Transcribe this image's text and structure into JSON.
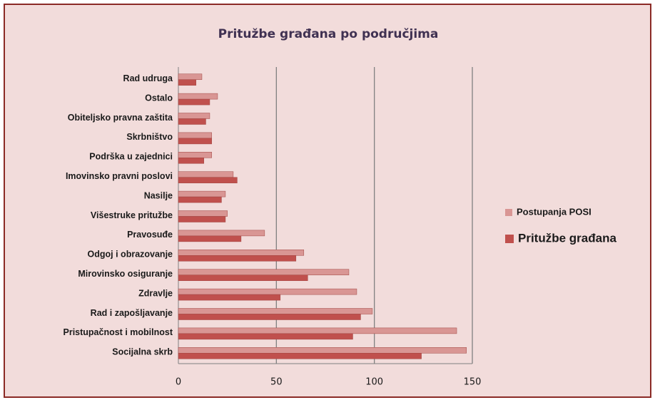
{
  "chart_data": {
    "type": "bar",
    "orientation": "horizontal",
    "title": "Pritužbe građana po područjima",
    "categories": [
      "Rad udruga",
      "Ostalo",
      "Obiteljsko pravna zaštita",
      "Skrbništvo",
      "Podrška u zajednici",
      "Imovinsko pravni poslovi",
      "Nasilje",
      "Višestruke pritužbe",
      "Pravosuđe",
      "Odgoj i obrazovanje",
      "Mirovinsko osiguranje",
      "Zdravlje",
      "Rad i zapošljavanje",
      "Pristupačnost i mobilnost",
      "Socijalna skrb"
    ],
    "series": [
      {
        "name": "Postupanja POSI",
        "color": "#d99694",
        "values": [
          12,
          20,
          16,
          17,
          17,
          28,
          24,
          25,
          44,
          64,
          87,
          91,
          99,
          142,
          147
        ]
      },
      {
        "name": "Pritužbe građana",
        "color": "#c0504d",
        "values": [
          9,
          16,
          14,
          17,
          13,
          30,
          22,
          24,
          32,
          60,
          66,
          52,
          93,
          89,
          124
        ]
      }
    ],
    "xlim": [
      0,
      150
    ],
    "xticks": [
      0,
      50,
      100,
      150
    ],
    "grid": true,
    "legend": "right"
  }
}
